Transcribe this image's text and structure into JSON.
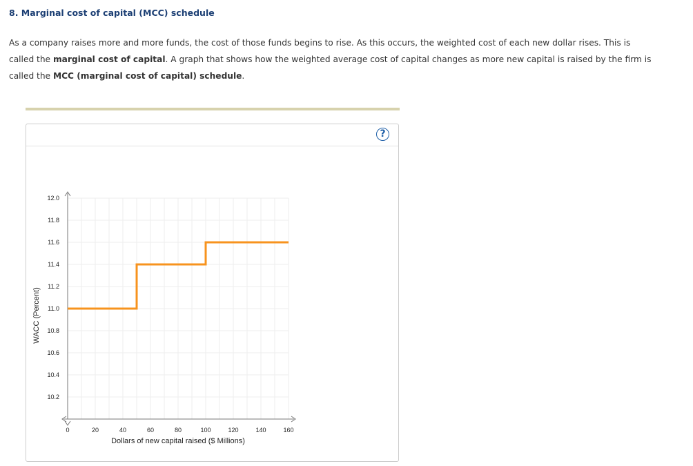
{
  "question": {
    "title": "8. Marginal cost of capital (MCC) schedule",
    "intro_parts": [
      {
        "text": "As a company raises more and more funds, the cost of those funds begins to rise. As this occurs, the weighted cost of each new dollar rises. This is called the ",
        "bold": false
      },
      {
        "text": "marginal cost of capital",
        "bold": true
      },
      {
        "text": ". A graph that shows how the weighted average cost of capital changes as more new capital is raised by the firm is called the ",
        "bold": false
      },
      {
        "text": "MCC (marginal cost of capital) schedule",
        "bold": true
      },
      {
        "text": ".",
        "bold": false
      }
    ]
  },
  "help_icon": {
    "icon": "question-circle-icon",
    "glyph": "?",
    "color": "#1e5fa8"
  },
  "chart_data": {
    "type": "line",
    "xlabel": "Dollars of new capital raised ($ Millions)",
    "ylabel": "WACC (Percent)",
    "xlim": [
      0,
      160
    ],
    "ylim": [
      10.0,
      12.0
    ],
    "x_ticks": [
      0,
      20,
      40,
      60,
      80,
      100,
      120,
      140,
      160
    ],
    "y_ticks": [
      10.2,
      10.4,
      10.6,
      10.8,
      11.0,
      11.2,
      11.4,
      11.6,
      11.8,
      12.0
    ],
    "grid": true,
    "series": [
      {
        "color": "#f7931e",
        "step": true,
        "points": [
          [
            0,
            11.0
          ],
          [
            50,
            11.0
          ],
          [
            50,
            11.4
          ],
          [
            100,
            11.4
          ],
          [
            100,
            11.6
          ],
          [
            160,
            11.6
          ]
        ]
      }
    ]
  }
}
